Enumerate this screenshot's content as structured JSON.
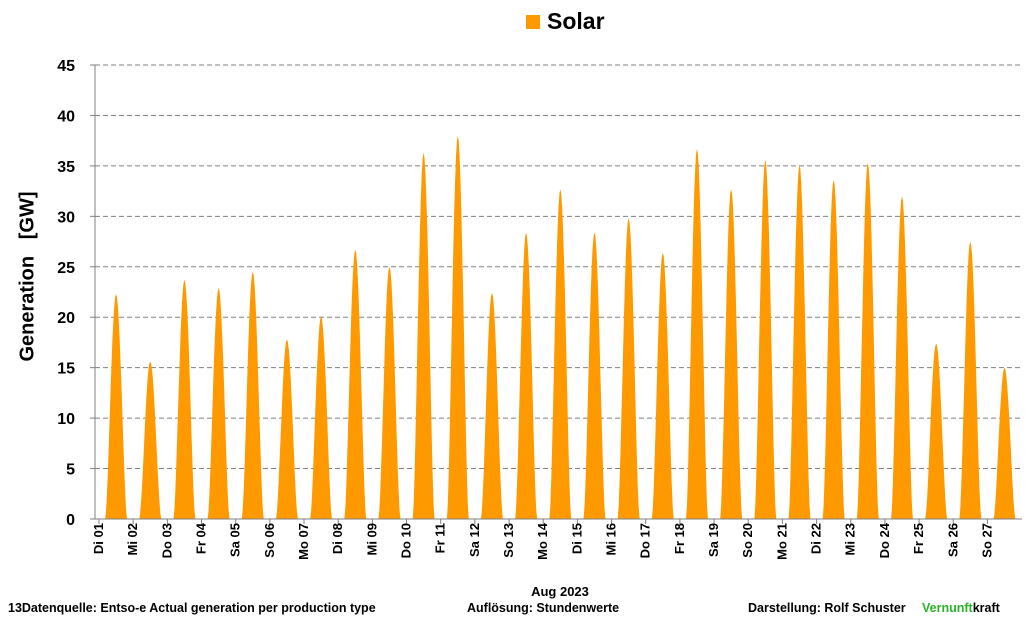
{
  "colors": {
    "solar": "#ff9900",
    "grid": "#808080",
    "axis": "#808080"
  },
  "chart_data": {
    "type": "area",
    "title": "",
    "legend": {
      "position": "top",
      "entries": [
        "Solar"
      ]
    },
    "xlabel": "Aug 2023",
    "ylabel": "Generation   [GW]",
    "ylim": [
      0,
      45
    ],
    "yticks": [
      0,
      5,
      10,
      15,
      20,
      25,
      30,
      35,
      40,
      45
    ],
    "grid": "horizontal-dashed",
    "resolution": "hourly",
    "x_tick_labels": [
      "Di 01",
      "Mi 02",
      "Do 03",
      "Fr 04",
      "Sa 05",
      "So 06",
      "Mo 07",
      "Di 08",
      "Mi 09",
      "Do 10",
      "Fr 11",
      "Sa 12",
      "So 13",
      "Mo 14",
      "Di 15",
      "Mi 16",
      "Do 17",
      "Fr 18",
      "Sa 19",
      "So 20",
      "Mo 21",
      "Di 22",
      "Mi 23",
      "Do 24",
      "Fr 25",
      "Sa 26",
      "So 27"
    ],
    "series": [
      {
        "name": "Solar",
        "daily_peak_GW": [
          22.3,
          15.6,
          23.7,
          22.9,
          24.5,
          17.8,
          20.1,
          26.7,
          25.0,
          36.3,
          38.0,
          22.4,
          28.4,
          32.7,
          28.4,
          29.8,
          26.4,
          36.7,
          32.7,
          35.6,
          35.1,
          33.6,
          35.3,
          32.0,
          17.4,
          27.5,
          15.0
        ]
      }
    ]
  },
  "legend": {
    "label": "Solar"
  },
  "footer": {
    "source": "13Datenquelle: Entso-e  Actual generation per production type",
    "resolution": "Auflösung: Stundenwerte",
    "author": "Darstellung:  Rolf Schuster",
    "brand_green": "Vernunft",
    "brand_rest": "kraft"
  }
}
